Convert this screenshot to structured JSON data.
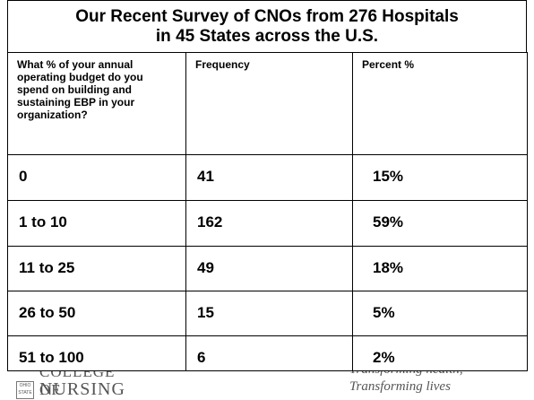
{
  "table": {
    "title_lines": [
      "Our Recent Survey of CNOs from 276 Hospitals",
      "in 45 States across the U.S."
    ],
    "header": [
      "What % of your annual operating budget do you spend on building and sustaining EBP in your organization?",
      "Frequency",
      "Percent %"
    ],
    "rows": [
      [
        "0",
        "41",
        "15%"
      ],
      [
        "1 to 10",
        "162",
        "59%"
      ],
      [
        "11 to 25",
        "49",
        "18%"
      ],
      [
        "26 to 50",
        "15",
        "5%"
      ],
      [
        "51 to 100",
        "6",
        "2%"
      ]
    ]
  },
  "footer": {
    "logo_top": "OHIO STATE",
    "logo_line1": "COLLEGE OF",
    "logo_line2": "NURSING",
    "tagline_1": "Transforming health,",
    "tagline_2": "Transforming lives"
  }
}
